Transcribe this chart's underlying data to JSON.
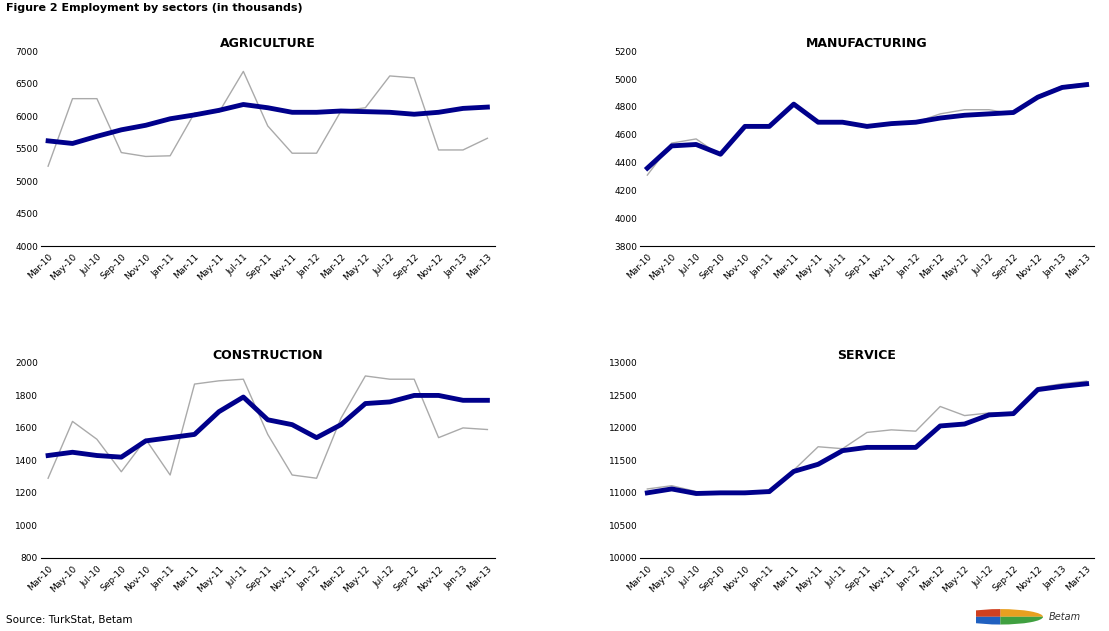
{
  "title": "Figure 2 Employment by sectors (in thousands)",
  "source": "Source: TurkStat, Betam",
  "x_labels": [
    "Mar-10",
    "May-10",
    "Jul-10",
    "Sep-10",
    "Nov-10",
    "Jan-11",
    "Mar-11",
    "May-11",
    "Jul-11",
    "Sep-11",
    "Nov-11",
    "Jan-12",
    "Mar-12",
    "May-12",
    "Jul-12",
    "Sep-12",
    "Nov-12",
    "Jan-13",
    "Mar-13"
  ],
  "agriculture": {
    "title": "AGRICULTURE",
    "ylim": [
      4000,
      7000
    ],
    "yticks": [
      4000,
      4500,
      5000,
      5500,
      6000,
      6500,
      7000
    ],
    "smooth": [
      5620,
      5580,
      5690,
      5790,
      5860,
      5960,
      6020,
      6090,
      6180,
      6130,
      6060,
      6060,
      6080,
      6070,
      6060,
      6030,
      6060,
      6120,
      6140
    ],
    "raw": [
      5230,
      6270,
      6270,
      5440,
      5380,
      5390,
      6050,
      6060,
      6690,
      5850,
      5430,
      5430,
      6080,
      6130,
      6620,
      6590,
      5480,
      5480,
      5660
    ]
  },
  "manufacturing": {
    "title": "MANUFACTURING",
    "ylim": [
      3800,
      5200
    ],
    "yticks": [
      3800,
      4000,
      4200,
      4400,
      4600,
      4800,
      5000,
      5200
    ],
    "smooth": [
      4360,
      4520,
      4530,
      4460,
      4660,
      4660,
      4820,
      4690,
      4690,
      4660,
      4680,
      4690,
      4720,
      4740,
      4750,
      4760,
      4870,
      4940,
      4960
    ],
    "raw": [
      4310,
      4540,
      4570,
      4450,
      4670,
      4660,
      4820,
      4690,
      4690,
      4650,
      4680,
      4690,
      4750,
      4780,
      4780,
      4750,
      4880,
      4950,
      4970
    ]
  },
  "construction": {
    "title": "CONSTRUCTION",
    "ylim": [
      800,
      2000
    ],
    "yticks": [
      800,
      1000,
      1200,
      1400,
      1600,
      1800,
      2000
    ],
    "smooth": [
      1430,
      1450,
      1430,
      1420,
      1520,
      1540,
      1560,
      1700,
      1790,
      1650,
      1620,
      1540,
      1620,
      1750,
      1760,
      1800,
      1800,
      1770,
      1770
    ],
    "raw": [
      1290,
      1640,
      1530,
      1330,
      1530,
      1310,
      1870,
      1890,
      1900,
      1560,
      1310,
      1290,
      1660,
      1920,
      1900,
      1900,
      1540,
      1600,
      1590
    ]
  },
  "service": {
    "title": "SERVICE",
    "ylim": [
      10000,
      13000
    ],
    "yticks": [
      10000,
      10500,
      11000,
      11500,
      12000,
      12500,
      13000
    ],
    "smooth": [
      11000,
      11060,
      10990,
      11000,
      11000,
      11020,
      11330,
      11440,
      11650,
      11700,
      11700,
      11700,
      12030,
      12060,
      12200,
      12220,
      12590,
      12640,
      12680
    ],
    "raw": [
      11060,
      11110,
      11020,
      10980,
      11020,
      10990,
      11350,
      11710,
      11680,
      11930,
      11970,
      11950,
      12330,
      12190,
      12230,
      12230,
      12620,
      12680,
      12720
    ]
  },
  "smooth_color": "#00008B",
  "raw_color": "#aaaaaa",
  "smooth_lw": 3.5,
  "raw_lw": 1.0,
  "bg_color": "#ffffff",
  "tick_fontsize": 6.5,
  "title_fontsize": 9
}
